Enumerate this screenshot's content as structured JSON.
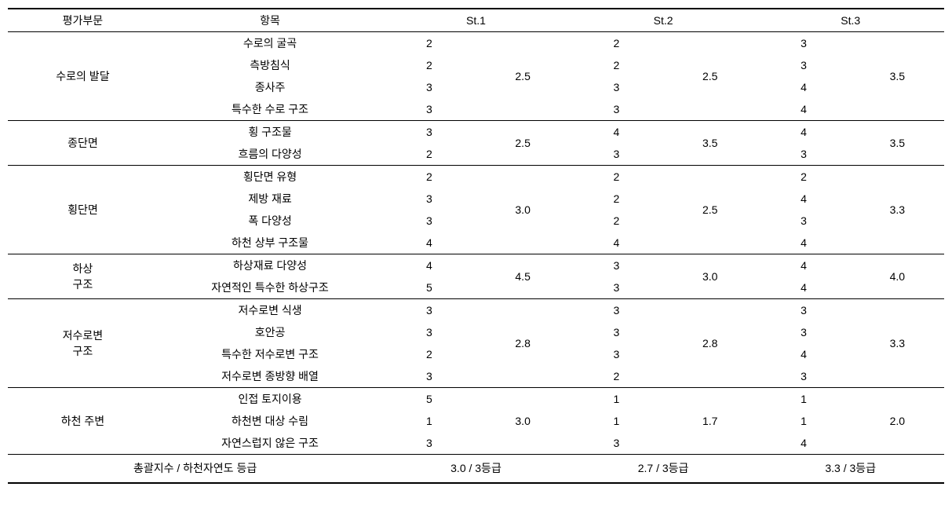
{
  "headers": {
    "category": "평가부문",
    "item": "항목",
    "st1": "St.1",
    "st2": "St.2",
    "st3": "St.3"
  },
  "sections": [
    {
      "category": "수로의 발달",
      "items": [
        {
          "name": "수로의 굴곡",
          "st1": "2",
          "st2": "2",
          "st3": "3"
        },
        {
          "name": "측방침식",
          "st1": "2",
          "st2": "2",
          "st3": "3"
        },
        {
          "name": "종사주",
          "st1": "3",
          "st2": "3",
          "st3": "4"
        },
        {
          "name": "특수한 수로 구조",
          "st1": "3",
          "st2": "3",
          "st3": "4"
        }
      ],
      "avg": {
        "st1": "2.5",
        "st2": "2.5",
        "st3": "3.5"
      }
    },
    {
      "category": "종단면",
      "items": [
        {
          "name": "횡 구조물",
          "st1": "3",
          "st2": "4",
          "st3": "4"
        },
        {
          "name": "흐름의 다양성",
          "st1": "2",
          "st2": "3",
          "st3": "3"
        }
      ],
      "avg": {
        "st1": "2.5",
        "st2": "3.5",
        "st3": "3.5"
      }
    },
    {
      "category": "횡단면",
      "items": [
        {
          "name": "횡단면 유형",
          "st1": "2",
          "st2": "2",
          "st3": "2"
        },
        {
          "name": "제방 재료",
          "st1": "3",
          "st2": "2",
          "st3": "4"
        },
        {
          "name": "폭 다양성",
          "st1": "3",
          "st2": "2",
          "st3": "3"
        },
        {
          "name": "하천 상부 구조물",
          "st1": "4",
          "st2": "4",
          "st3": "4"
        }
      ],
      "avg": {
        "st1": "3.0",
        "st2": "2.5",
        "st3": "3.3"
      }
    },
    {
      "category_lines": [
        "하상",
        "구조"
      ],
      "items": [
        {
          "name": "하상재료 다양성",
          "st1": "4",
          "st2": "3",
          "st3": "4"
        },
        {
          "name": "자연적인 특수한 하상구조",
          "st1": "5",
          "st2": "3",
          "st3": "4"
        }
      ],
      "avg": {
        "st1": "4.5",
        "st2": "3.0",
        "st3": "4.0"
      }
    },
    {
      "category_lines": [
        "저수로변",
        "구조"
      ],
      "items": [
        {
          "name": "저수로변 식생",
          "st1": "3",
          "st2": "3",
          "st3": "3"
        },
        {
          "name": "호안공",
          "st1": "3",
          "st2": "3",
          "st3": "3"
        },
        {
          "name": "특수한 저수로변 구조",
          "st1": "2",
          "st2": "3",
          "st3": "4"
        },
        {
          "name": "저수로변 종방향 배열",
          "st1": "3",
          "st2": "2",
          "st3": "3"
        }
      ],
      "avg": {
        "st1": "2.8",
        "st2": "2.8",
        "st3": "3.3"
      }
    },
    {
      "category": "하천 주변",
      "items": [
        {
          "name": "인접 토지이용",
          "st1": "5",
          "st2": "1",
          "st3": "1"
        },
        {
          "name": "하천변 대상 수림",
          "st1": "1",
          "st2": "1",
          "st3": "1"
        },
        {
          "name": "자연스럽지 않은 구조",
          "st1": "3",
          "st2": "3",
          "st3": "4"
        }
      ],
      "avg": {
        "st1": "3.0",
        "st2": "1.7",
        "st3": "2.0"
      }
    }
  ],
  "summary": {
    "label": "총괄지수 / 하천자연도 등급",
    "st1": "3.0 / 3등급",
    "st2": "2.7 / 3등급",
    "st3": "3.3 / 3등급"
  }
}
